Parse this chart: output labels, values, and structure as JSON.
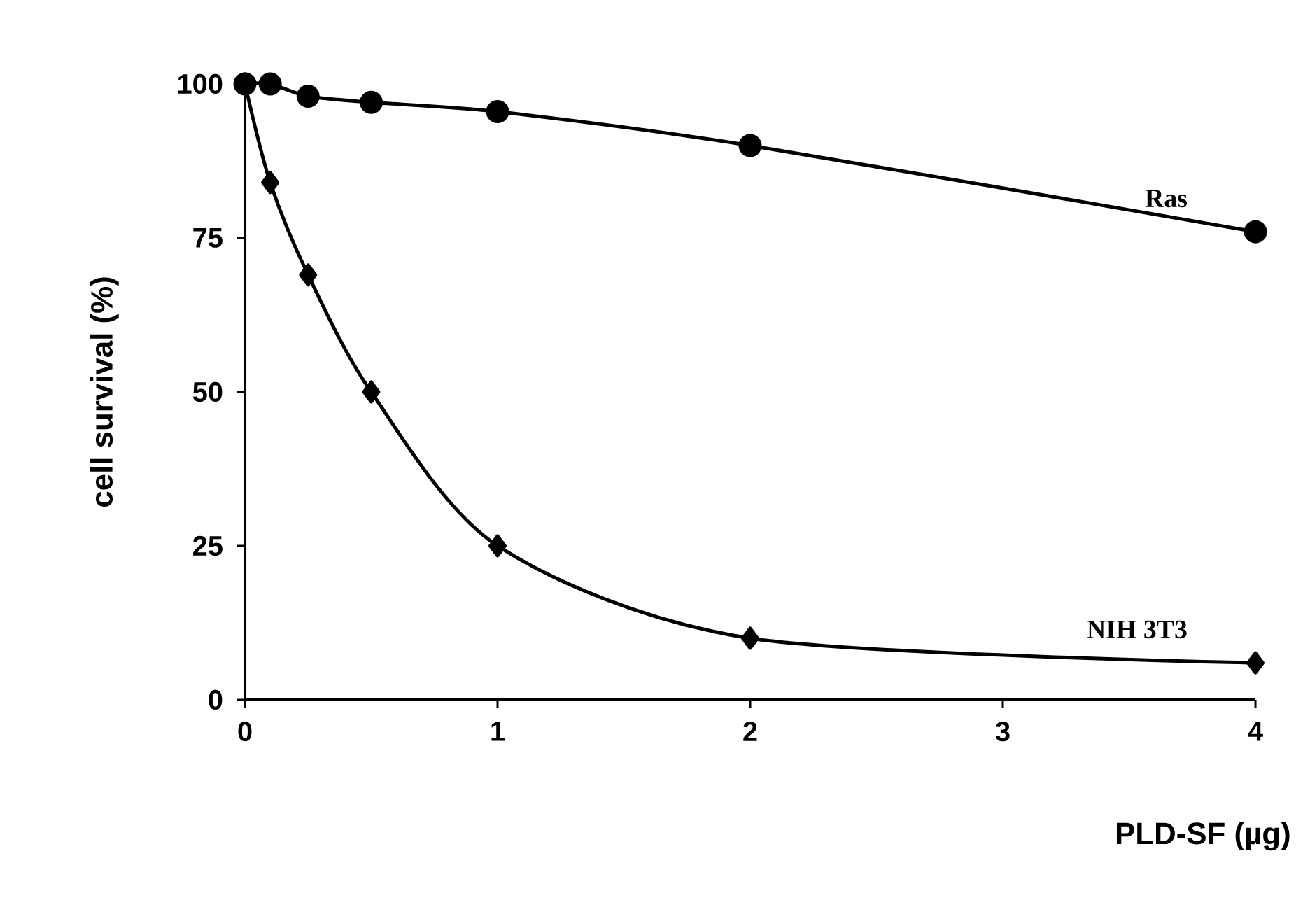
{
  "chart_data": {
    "type": "line",
    "xlabel": "PLD-SF (µg)",
    "ylabel": "cell survival (%)",
    "xlim": [
      0,
      4
    ],
    "ylim": [
      0,
      100
    ],
    "xticks": [
      0,
      1,
      2,
      3,
      4
    ],
    "yticks": [
      0,
      25,
      50,
      75,
      100
    ],
    "grid": false,
    "legend": false,
    "line_style": "solid",
    "series": [
      {
        "name": "Ras",
        "color": "#000000",
        "marker": "circle",
        "x": [
          0,
          0.1,
          0.25,
          0.5,
          1,
          2,
          4
        ],
        "values": [
          100,
          100,
          98,
          97,
          95.5,
          90,
          76
        ]
      },
      {
        "name": "NIH 3T3",
        "color": "#000000",
        "marker": "diamond",
        "x": [
          0,
          0.1,
          0.25,
          0.5,
          1,
          2,
          4
        ],
        "values": [
          100,
          84,
          69,
          50,
          25,
          10,
          6
        ]
      }
    ]
  }
}
